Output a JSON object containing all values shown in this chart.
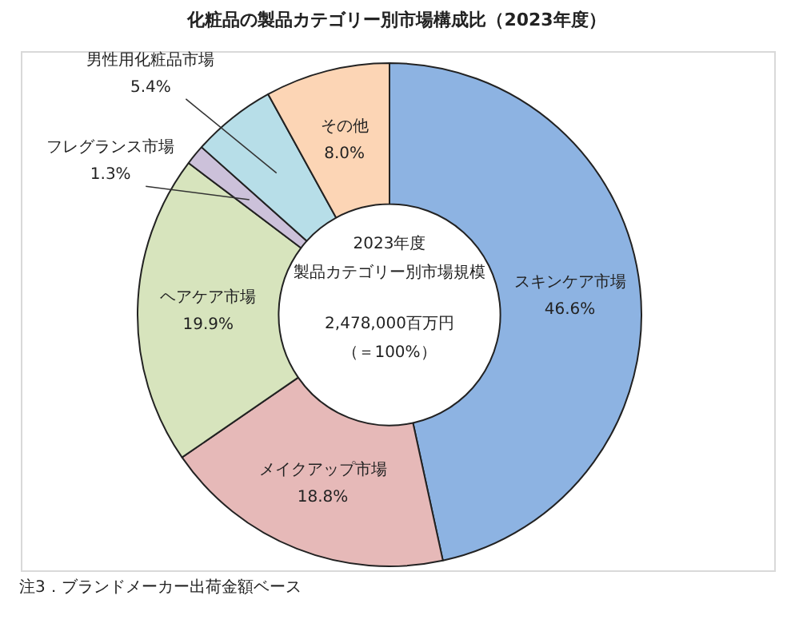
{
  "chart_data": {
    "type": "donut",
    "title": "化粧品の製品カテゴリー別市場構成比（2023年度）",
    "categories": [
      "スキンケア市場",
      "メイクアップ市場",
      "ヘアケア市場",
      "フレグランス市場",
      "男性用化粧品市場",
      "その他"
    ],
    "values": [
      46.6,
      18.8,
      19.9,
      1.3,
      5.4,
      8.0
    ],
    "colors": [
      "#8db3e2",
      "#e6b9b8",
      "#d7e4bd",
      "#ccc1da",
      "#b7dee8",
      "#fcd5b5"
    ],
    "value_labels": [
      "46.6%",
      "18.8%",
      "19.9%",
      "1.3%",
      "5.4%",
      "8.0%"
    ],
    "annotations": [
      "2023年度",
      "製品カテゴリー別市場規模",
      "2,478,000百万円",
      "（＝100%）",
      "注3．ブランドメーカー出荷金額ベース"
    ],
    "legend": false
  }
}
